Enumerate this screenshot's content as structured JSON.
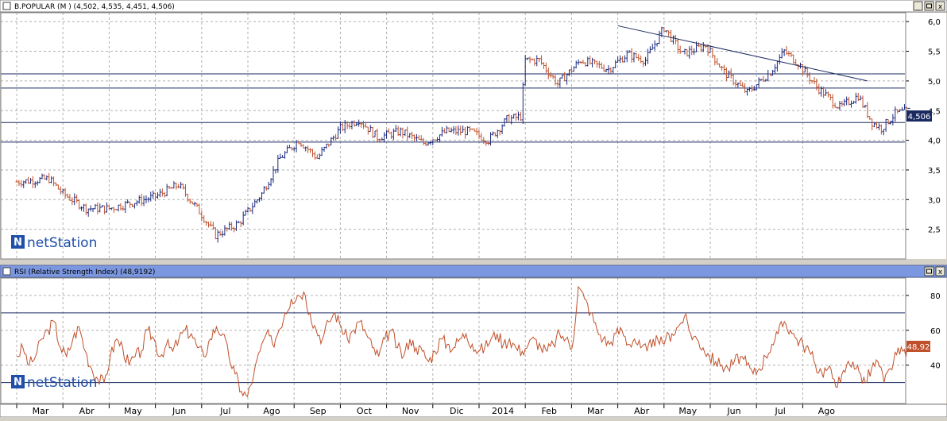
{
  "price_panel": {
    "title": "B.POPULAR (M ) (4,502, 4,535, 4,451, 4,506)",
    "last_value_label": "4,506",
    "watermark": "netStation",
    "watermark_prefix": "N",
    "buttons": {
      "minimize": "_",
      "close": "x"
    }
  },
  "rsi_panel": {
    "title": "RSI (Relative Strength Index) (48,9192)",
    "last_value_label": "48,92",
    "watermark": "netStation",
    "watermark_prefix": "N",
    "buttons": {
      "restore": "▫",
      "close": "x"
    }
  },
  "colors": {
    "up_bar": "#1a2a80",
    "down_bar": "#c0502a",
    "rsi_line": "#c0502a",
    "title_bar_price": "#ffffff",
    "title_bar_rsi": "#7b97df",
    "grid": "#b0b0b0",
    "level_line": "#1a2a60",
    "value_badge_price": "#1a2a60",
    "value_badge_rsi": "#c0502a"
  },
  "chart_data": [
    {
      "type": "line",
      "subtype": "ohlc",
      "title": "B.POPULAR (M ) (4,502, 4,535, 4,451, 4,506)",
      "x_ticks": [
        "Mar",
        "Abr",
        "May",
        "Jun",
        "Jul",
        "Ago",
        "Sep",
        "Oct",
        "Nov",
        "Dic",
        "2014",
        "Feb",
        "Mar",
        "Abr",
        "May",
        "Jun",
        "Jul",
        "Ago"
      ],
      "y_ticks": [
        "6,0",
        "5,5",
        "5,0",
        "4,5",
        "4,0",
        "3,5",
        "3,0",
        "2,5"
      ],
      "ylim": [
        2.0,
        6.15
      ],
      "last_value": 4.506,
      "horizontal_levels": [
        5.12,
        4.88,
        4.3,
        3.97
      ],
      "trendline": {
        "from": {
          "month_index": 13.0,
          "value": 5.93
        },
        "to": {
          "month_index": 18.4,
          "value": 5.0
        }
      },
      "monthly_path": [
        {
          "m": 0.0,
          "v": 3.3
        },
        {
          "m": 0.7,
          "v": 3.35
        },
        {
          "m": 1.0,
          "v": 3.1
        },
        {
          "m": 1.5,
          "v": 2.85
        },
        {
          "m": 2.0,
          "v": 2.85
        },
        {
          "m": 2.5,
          "v": 2.95
        },
        {
          "m": 3.0,
          "v": 3.05
        },
        {
          "m": 3.5,
          "v": 3.25
        },
        {
          "m": 4.0,
          "v": 2.75
        },
        {
          "m": 4.3,
          "v": 2.4
        },
        {
          "m": 4.8,
          "v": 2.6
        },
        {
          "m": 5.3,
          "v": 3.1
        },
        {
          "m": 5.7,
          "v": 3.7
        },
        {
          "m": 6.1,
          "v": 4.0
        },
        {
          "m": 6.5,
          "v": 3.7
        },
        {
          "m": 7.0,
          "v": 4.2
        },
        {
          "m": 7.4,
          "v": 4.35
        },
        {
          "m": 7.8,
          "v": 4.05
        },
        {
          "m": 8.3,
          "v": 4.15
        },
        {
          "m": 8.8,
          "v": 3.95
        },
        {
          "m": 9.3,
          "v": 4.15
        },
        {
          "m": 9.8,
          "v": 4.15
        },
        {
          "m": 10.2,
          "v": 4.0
        },
        {
          "m": 10.6,
          "v": 4.35
        },
        {
          "m": 10.9,
          "v": 4.4
        },
        {
          "m": 11.0,
          "v": 5.35
        },
        {
          "m": 11.3,
          "v": 5.35
        },
        {
          "m": 11.7,
          "v": 4.95
        },
        {
          "m": 12.2,
          "v": 5.35
        },
        {
          "m": 12.8,
          "v": 5.2
        },
        {
          "m": 13.2,
          "v": 5.45
        },
        {
          "m": 13.6,
          "v": 5.35
        },
        {
          "m": 14.0,
          "v": 5.9
        },
        {
          "m": 14.4,
          "v": 5.45
        },
        {
          "m": 14.9,
          "v": 5.6
        },
        {
          "m": 15.3,
          "v": 5.15
        },
        {
          "m": 15.8,
          "v": 4.8
        },
        {
          "m": 16.3,
          "v": 5.15
        },
        {
          "m": 16.6,
          "v": 5.5
        },
        {
          "m": 16.9,
          "v": 5.3
        },
        {
          "m": 17.3,
          "v": 4.9
        },
        {
          "m": 17.8,
          "v": 4.55
        },
        {
          "m": 18.2,
          "v": 4.75
        },
        {
          "m": 18.5,
          "v": 4.3
        },
        {
          "m": 18.7,
          "v": 4.2
        },
        {
          "m": 19.0,
          "v": 4.45
        },
        {
          "m": 19.3,
          "v": 4.5
        }
      ]
    },
    {
      "type": "line",
      "title": "RSI (Relative Strength Index) (48,9192)",
      "x_ticks": [
        "Mar",
        "Abr",
        "May",
        "Jun",
        "Jul",
        "Ago",
        "Sep",
        "Oct",
        "Nov",
        "Dic",
        "2014",
        "Feb",
        "Mar",
        "Abr",
        "May",
        "Jun",
        "Jul",
        "Ago"
      ],
      "y_ticks": [
        "80",
        "60",
        "40"
      ],
      "ylim": [
        18,
        90
      ],
      "overbought": 70,
      "oversold": 30,
      "last_value": 48.92,
      "series": [
        {
          "values": [
            45,
            50,
            40,
            45,
            55,
            60,
            65,
            50,
            45,
            55,
            62,
            48,
            38,
            32,
            30,
            45,
            55,
            50,
            40,
            45,
            48,
            60,
            55,
            45,
            52,
            48,
            55,
            60,
            58,
            50,
            45,
            55,
            62,
            58,
            45,
            35,
            25,
            22,
            35,
            48,
            58,
            52,
            60,
            70,
            78,
            80,
            82,
            70,
            60,
            55,
            65,
            70,
            62,
            55,
            60,
            65,
            58,
            50,
            45,
            55,
            60,
            50,
            45,
            55,
            50,
            48,
            42,
            48,
            55,
            52,
            50,
            55,
            58,
            52,
            48,
            50,
            55,
            58,
            52,
            55,
            50,
            48,
            52,
            55,
            50,
            48,
            52,
            58,
            55,
            50,
            85,
            78,
            70,
            60,
            55,
            52,
            58,
            60,
            52,
            55,
            50,
            48,
            55,
            52,
            55,
            58,
            62,
            68,
            58,
            55,
            50,
            45,
            42,
            40,
            38,
            42,
            45,
            40,
            35,
            38,
            45,
            52,
            58,
            65,
            60,
            55,
            52,
            48,
            40,
            36,
            38,
            32,
            30,
            40,
            42,
            36,
            30,
            38,
            42,
            30,
            38,
            46,
            48,
            49
          ]
        }
      ]
    }
  ]
}
